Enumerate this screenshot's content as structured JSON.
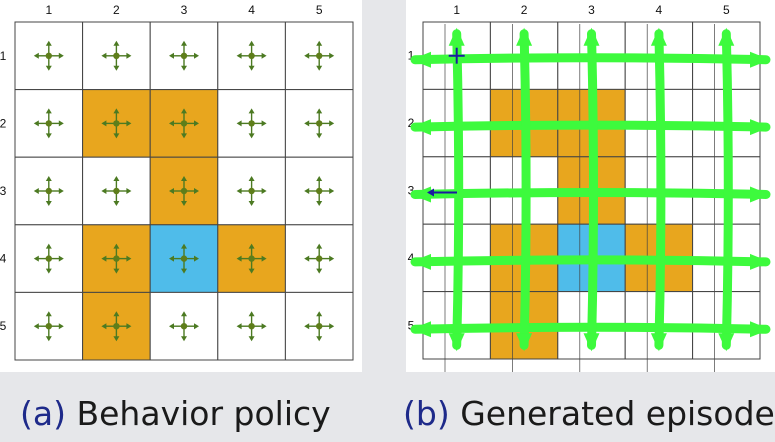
{
  "colors": {
    "forbidden": "#e8a61e",
    "target": "#4fbcea",
    "cell": "#ffffff",
    "grid": "#444444",
    "arrow_policy": "#4c7a22",
    "arrow_policy_dot": "#5e7e1a",
    "episode": "#3dfa3d",
    "start_marker": "#1a1aa0",
    "background": "#e6e7ea"
  },
  "grid": {
    "rows": 5,
    "cols": 5,
    "col_labels": [
      "1",
      "2",
      "3",
      "4",
      "5"
    ],
    "row_labels": [
      "1",
      "2",
      "3",
      "4",
      "5"
    ],
    "forbidden_cells": [
      [
        2,
        2
      ],
      [
        2,
        3
      ],
      [
        3,
        3
      ],
      [
        4,
        2
      ],
      [
        4,
        4
      ],
      [
        5,
        2
      ]
    ],
    "target_cell": [
      4,
      3
    ]
  },
  "panel_a": {
    "caption_prefix": "(a)",
    "caption_text": "Behavior policy",
    "policy": "uniform random: every cell has arrows up, down, left, right and stay"
  },
  "panel_b": {
    "caption_prefix": "(b)",
    "caption_text": "Generated episode",
    "start_cell": [
      1,
      1
    ],
    "episode_covers": "all cells"
  }
}
